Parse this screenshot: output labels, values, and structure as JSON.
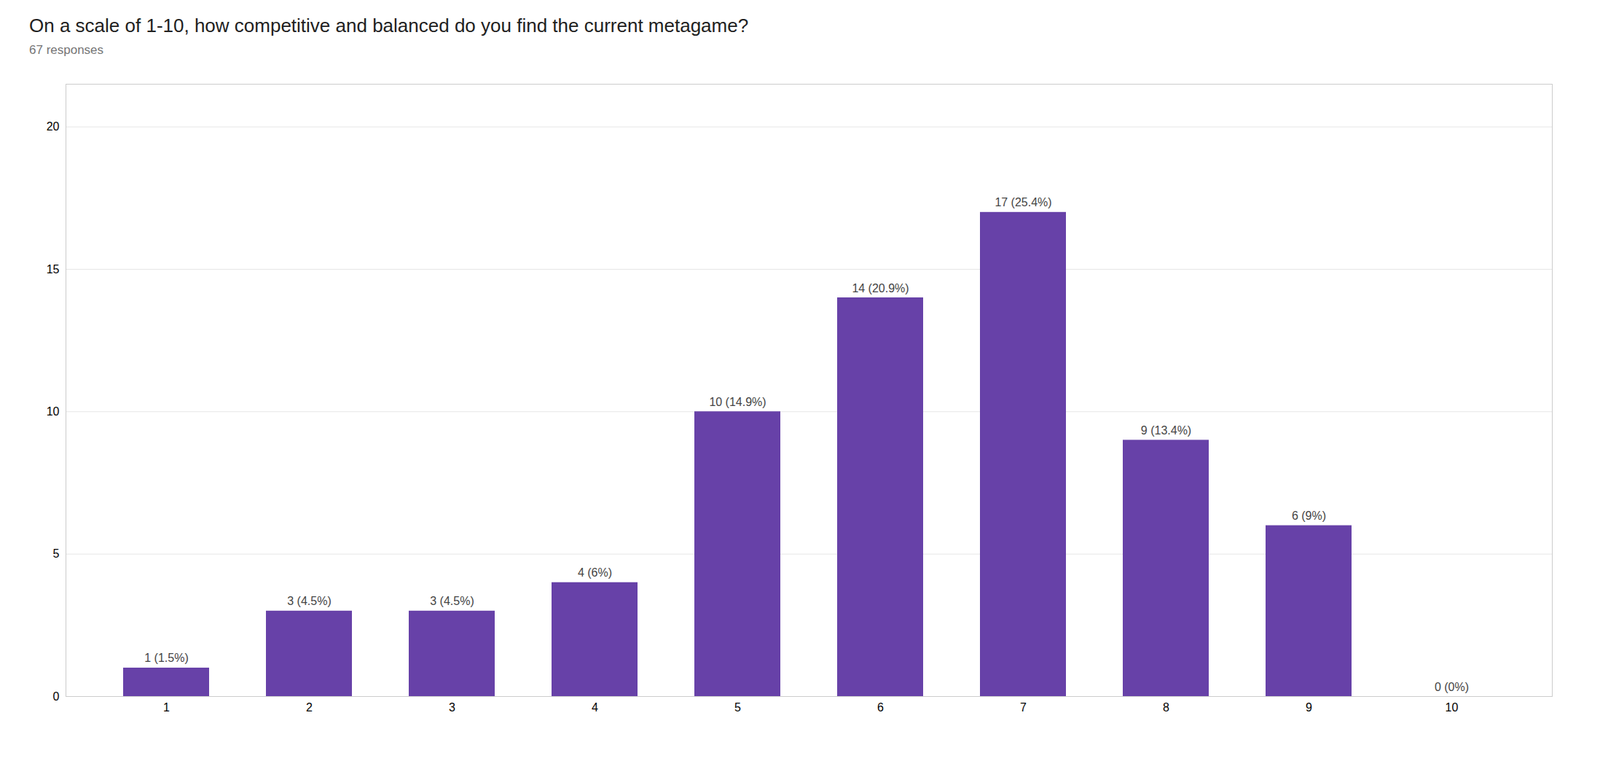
{
  "chart_data": {
    "type": "bar",
    "title": "On a scale of 1-10, how competitive and balanced do you find the current metagame?",
    "subtitle": "67 responses",
    "categories": [
      "1",
      "2",
      "3",
      "4",
      "5",
      "6",
      "7",
      "8",
      "9",
      "10"
    ],
    "values": [
      1,
      3,
      3,
      4,
      10,
      14,
      17,
      9,
      6,
      0
    ],
    "value_labels": [
      "1 (1.5%)",
      "3 (4.5%)",
      "3 (4.5%)",
      "4 (6%)",
      "10 (14.9%)",
      "14 (20.9%)",
      "17 (25.4%)",
      "9 (13.4%)",
      "6 (9%)",
      "0 (0%)"
    ],
    "data_labels": true,
    "color": "#6741a8",
    "ylim": [
      0,
      21.5
    ],
    "yticks": [
      0,
      5,
      10,
      15,
      20
    ],
    "grid": true
  }
}
